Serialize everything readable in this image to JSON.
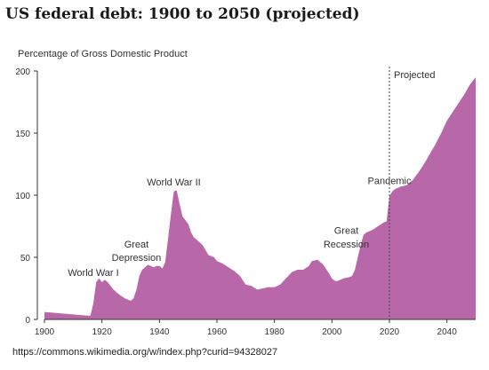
{
  "title": "US federal debt: 1900 to 2050 (projected)",
  "source": "https://commons.wikimedia.org/w/index.php?curid=94328027",
  "chart_data": {
    "type": "area",
    "title": "US federal debt: 1900 to 2050 (projected)",
    "ylabel": "Percentage of Gross Domestic Product",
    "xlabel": "",
    "xlim": [
      1900,
      2050
    ],
    "ylim": [
      0,
      200
    ],
    "xticks": [
      1900,
      1920,
      1940,
      1960,
      1980,
      2000,
      2020,
      2040
    ],
    "yticks": [
      0,
      50,
      100,
      150,
      200
    ],
    "grid": false,
    "fill_color": "#b868a8",
    "projection_start": 2020,
    "projection_label": "Projected",
    "annotations": [
      {
        "text": "World War I",
        "x": 1917,
        "y": 35
      },
      {
        "text": "Great",
        "x": 1932,
        "y": 58
      },
      {
        "text": "Depression",
        "x": 1932,
        "y": 47
      },
      {
        "text": "World War II",
        "x": 1945,
        "y": 108
      },
      {
        "text": "Great",
        "x": 2005,
        "y": 69
      },
      {
        "text": "Recession",
        "x": 2005,
        "y": 58
      },
      {
        "text": "Pandemic",
        "x": 2020,
        "y": 109
      }
    ],
    "x": [
      1900,
      1905,
      1910,
      1915,
      1916,
      1917,
      1918,
      1919,
      1920,
      1921,
      1922,
      1924,
      1926,
      1928,
      1930,
      1931,
      1932,
      1933,
      1934,
      1935,
      1936,
      1937,
      1938,
      1939,
      1940,
      1941,
      1942,
      1943,
      1944,
      1945,
      1946,
      1947,
      1948,
      1949,
      1950,
      1951,
      1952,
      1953,
      1955,
      1957,
      1959,
      1960,
      1962,
      1964,
      1966,
      1968,
      1970,
      1972,
      1974,
      1976,
      1978,
      1980,
      1982,
      1984,
      1986,
      1988,
      1990,
      1992,
      1993,
      1995,
      1997,
      1999,
      2000,
      2001,
      2002,
      2004,
      2006,
      2007,
      2008,
      2009,
      2010,
      2011,
      2012,
      2014,
      2016,
      2018,
      2019,
      2020,
      2021,
      2022,
      2024,
      2026,
      2028,
      2030,
      2032,
      2034,
      2036,
      2038,
      2040,
      2042,
      2044,
      2046,
      2048,
      2050
    ],
    "series": [
      {
        "values": [
          6,
          5,
          4,
          3,
          3,
          13,
          30,
          33,
          30,
          32,
          30,
          24,
          20,
          17,
          15,
          17,
          24,
          35,
          40,
          42,
          44,
          43,
          42,
          43,
          43,
          41,
          46,
          65,
          85,
          103,
          104,
          93,
          83,
          80,
          77,
          70,
          66,
          64,
          60,
          52,
          50,
          47,
          45,
          42,
          39,
          35,
          28,
          27,
          24,
          25,
          26,
          26,
          28,
          33,
          38,
          40,
          40,
          43,
          47,
          48,
          44,
          37,
          33,
          31,
          31,
          33,
          34,
          35,
          40,
          50,
          60,
          68,
          70,
          72,
          75,
          78,
          79,
          99,
          103,
          105,
          107,
          108,
          112,
          118,
          125,
          133,
          141,
          150,
          160,
          167,
          174,
          181,
          189,
          195
        ]
      }
    ]
  }
}
